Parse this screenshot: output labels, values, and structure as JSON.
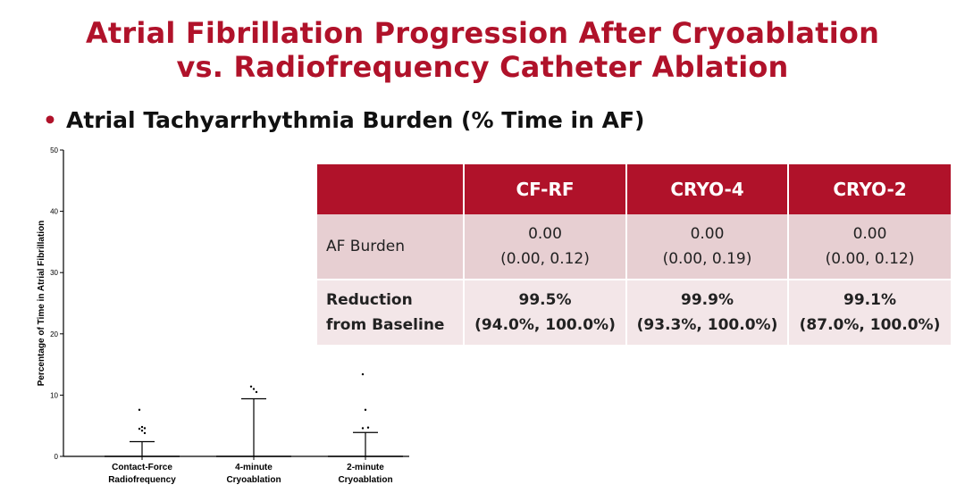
{
  "title_line1": "Atrial Fibrillation Progression After Cryoablation",
  "title_line2": "vs. Radiofrequency Catheter Ablation",
  "bullet_text": "Atrial Tachyarrhythmia Burden (% Time in AF)",
  "colors": {
    "accent": "#b0122a",
    "row1_bg": "#e7cfd2",
    "row2_bg": "#f3e6e8"
  },
  "table": {
    "headers": [
      "",
      "CF-RF",
      "CRYO-4",
      "CRYO-2"
    ],
    "rows": [
      {
        "label": "AF Burden",
        "cells": [
          [
            "0.00",
            "(0.00, 0.12)"
          ],
          [
            "0.00",
            "(0.00, 0.19)"
          ],
          [
            "0.00",
            "(0.00, 0.12)"
          ]
        ]
      },
      {
        "label": [
          "Reduction",
          "from Baseline"
        ],
        "cells": [
          [
            "99.5%",
            "(94.0%, 100.0%)"
          ],
          [
            "99.9%",
            "(93.3%, 100.0%)"
          ],
          [
            "99.1%",
            "(87.0%, 100.0%)"
          ]
        ]
      }
    ]
  },
  "chart_data": {
    "type": "scatter",
    "ylabel": "Percentage of Time in Atrial Fibrillation",
    "xlabel": "",
    "ylim": [
      0,
      50
    ],
    "yticks": [
      0,
      10,
      20,
      30,
      40,
      50
    ],
    "grid": false,
    "categories": [
      [
        "Contact-Force",
        "Radiofrequency"
      ],
      [
        "4-minute",
        "Cryoablation"
      ],
      [
        "2-minute",
        "Cryoablation"
      ]
    ],
    "groups": [
      {
        "median": 0,
        "whisker_top": 2.4,
        "outliers": [
          7.6,
          4.8,
          4.6,
          4.5,
          4.2,
          3.8
        ]
      },
      {
        "median": 0,
        "whisker_top": 9.4,
        "outliers": [
          11.4,
          11.0,
          10.5
        ]
      },
      {
        "median": 0,
        "whisker_top": 3.9,
        "outliers": [
          13.4,
          7.6,
          4.7,
          4.6
        ]
      }
    ]
  }
}
